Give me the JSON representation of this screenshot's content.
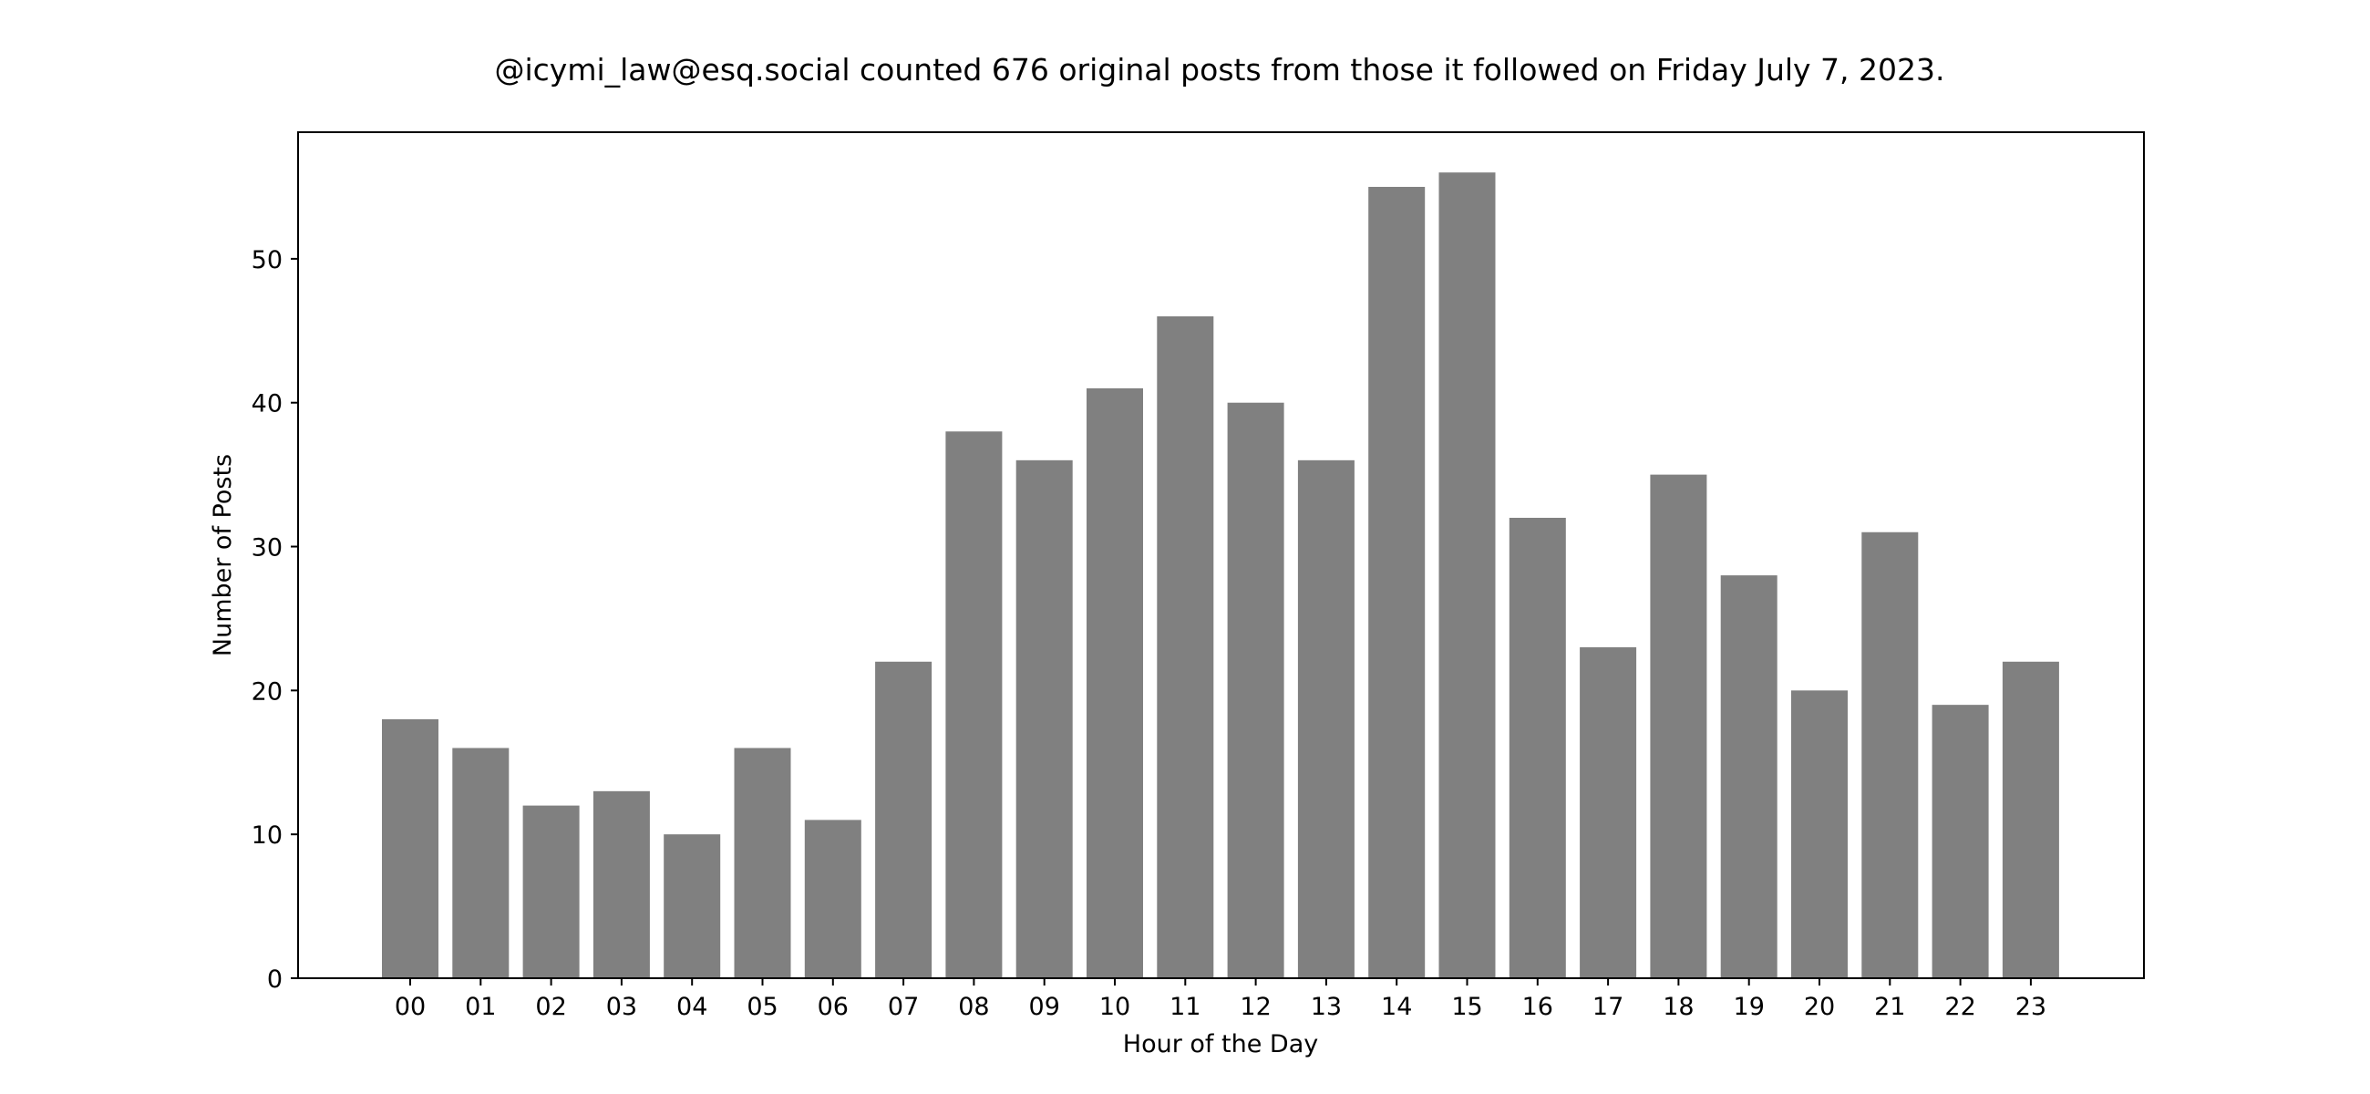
{
  "chart_data": {
    "type": "bar",
    "title": "@icymi_law@esq.social counted 676 original posts from those it followed on Friday July 7, 2023.",
    "xlabel": "Hour of the Day",
    "ylabel": "Number of Posts",
    "categories": [
      "00",
      "01",
      "02",
      "03",
      "04",
      "05",
      "06",
      "07",
      "08",
      "09",
      "10",
      "11",
      "12",
      "13",
      "14",
      "15",
      "16",
      "17",
      "18",
      "19",
      "20",
      "21",
      "22",
      "23"
    ],
    "values": [
      18,
      16,
      12,
      13,
      10,
      16,
      11,
      22,
      38,
      36,
      41,
      46,
      40,
      36,
      55,
      56,
      32,
      23,
      35,
      28,
      20,
      31,
      19,
      22
    ],
    "yticks": [
      0,
      10,
      20,
      30,
      40,
      50
    ],
    "ylim": [
      0,
      58.8
    ],
    "grid": false,
    "bar_color": "#808080"
  }
}
